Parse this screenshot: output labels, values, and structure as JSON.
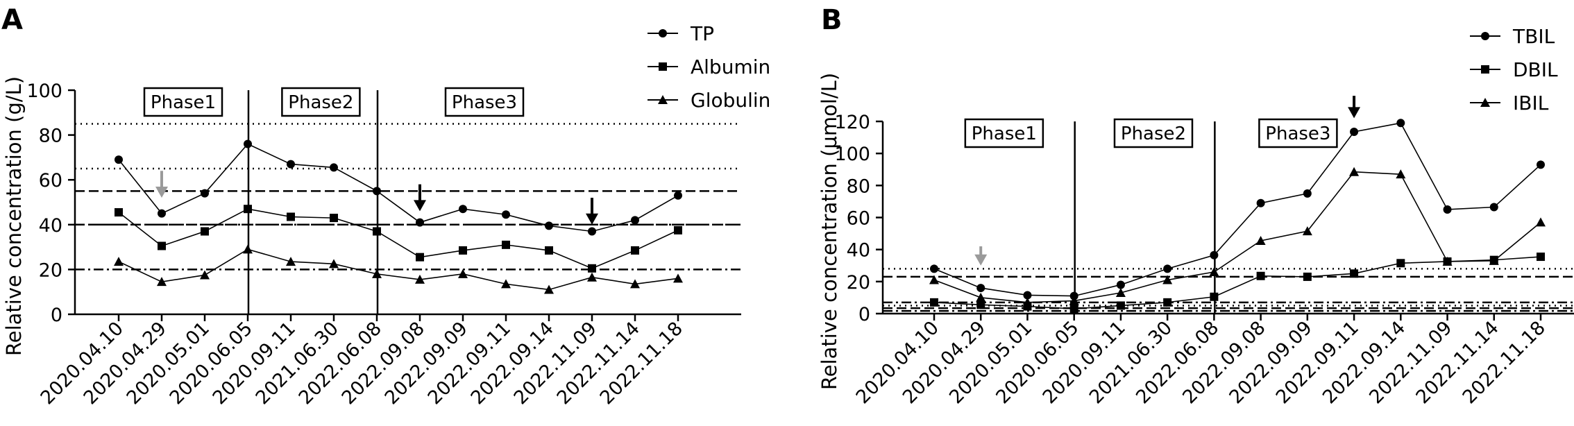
{
  "chart_data": [
    {
      "type": "line",
      "panel": "A",
      "title": "",
      "xlabel": "",
      "ylabel": "Relative concentration (g/L)",
      "ylim": [
        0,
        100
      ],
      "yticks": [
        0,
        20,
        40,
        60,
        80,
        100
      ],
      "categories": [
        "2020.04.10",
        "2020.04.29",
        "2020.05.01",
        "2020.06.05",
        "2020.09.11",
        "2021.06.30",
        "2022.06.08",
        "2022.09.08",
        "2022.09.09",
        "2022.09.11",
        "2022.09.14",
        "2022.11.09",
        "2022.11.14",
        "2022.11.18"
      ],
      "series": [
        {
          "name": "TP",
          "marker": "circle",
          "values": [
            69,
            45,
            54,
            76,
            67,
            65.5,
            55,
            41,
            47,
            44.5,
            39.5,
            37,
            42,
            53
          ]
        },
        {
          "name": "Albumin",
          "marker": "square",
          "values": [
            45.5,
            30.5,
            37,
            47,
            43.5,
            43,
            37,
            25.5,
            28.5,
            31,
            28.5,
            20.5,
            28.5,
            37.5
          ]
        },
        {
          "name": "Globulin",
          "marker": "triangle",
          "values": [
            23.5,
            14.5,
            17.5,
            29,
            23.5,
            22.5,
            18,
            15.5,
            18,
            13.5,
            11,
            16.5,
            13.5,
            16
          ]
        }
      ],
      "reference_lines": [
        {
          "value": 85,
          "style": "dotted"
        },
        {
          "value": 65,
          "style": "dotted"
        },
        {
          "value": 55,
          "style": "dashed"
        },
        {
          "value": 40,
          "style": "dashed"
        },
        {
          "value": 40,
          "style": "dashdot"
        },
        {
          "value": 20,
          "style": "dashdot"
        }
      ],
      "phase_dividers_after_index": [
        3,
        6
      ],
      "phases": [
        {
          "label": "Phase1",
          "center_index": 1.5
        },
        {
          "label": "Phase2",
          "center_index": 4.7
        },
        {
          "label": "Phase3",
          "center_index": 8.5
        }
      ],
      "arrows": [
        {
          "index": 1,
          "color": "#9a9a9a",
          "from": 64,
          "to": 52
        },
        {
          "index": 7,
          "color": "#000000",
          "from": 58,
          "to": 46
        },
        {
          "index": 11,
          "color": "#000000",
          "from": 52,
          "to": 40
        }
      ],
      "legend_position": "top-right"
    },
    {
      "type": "line",
      "panel": "B",
      "title": "",
      "xlabel": "",
      "ylabel": "Relative concentration (μmol/L)",
      "ylim": [
        0,
        120
      ],
      "yticks": [
        0,
        20,
        40,
        60,
        80,
        100,
        120
      ],
      "categories": [
        "2020.04.10",
        "2020.04.29",
        "2020.05.01",
        "2020.06.05",
        "2020.09.11",
        "2021.06.30",
        "2022.06.08",
        "2022.09.08",
        "2022.09.09",
        "2022.09.11",
        "2022.09.14",
        "2022.11.09",
        "2022.11.14",
        "2022.11.18"
      ],
      "series": [
        {
          "name": "TBIL",
          "marker": "circle",
          "values": [
            28,
            16,
            11.5,
            11,
            18,
            28,
            36.5,
            69,
            75,
            113.5,
            119,
            65,
            66.5,
            93
          ]
        },
        {
          "name": "DBIL",
          "marker": "square",
          "values": [
            7,
            5.5,
            4.5,
            3,
            5,
            7,
            10.5,
            23.5,
            23,
            25,
            31.5,
            32.5,
            33.5,
            35.5
          ]
        },
        {
          "name": "IBIL",
          "marker": "triangle",
          "values": [
            21,
            10,
            7,
            8,
            13,
            21,
            26,
            45.5,
            51.5,
            88.5,
            87,
            32.5,
            33,
            57
          ]
        }
      ],
      "reference_lines": [
        {
          "value": 28,
          "style": "dotted"
        },
        {
          "value": 23,
          "style": "dashed"
        },
        {
          "value": 7,
          "style": "dashdot"
        },
        {
          "value": 5,
          "style": "dotted"
        },
        {
          "value": 3.4,
          "style": "dashed"
        },
        {
          "value": 1.7,
          "style": "dashdot"
        }
      ],
      "phase_dividers_after_index": [
        3,
        6
      ],
      "phases": [
        {
          "label": "Phase1",
          "center_index": 1.5
        },
        {
          "label": "Phase2",
          "center_index": 4.7
        },
        {
          "label": "Phase3",
          "center_index": 7.8
        }
      ],
      "arrows": [
        {
          "index": 1,
          "color": "#9a9a9a",
          "from": 42,
          "to": 30
        },
        {
          "index": 9,
          "color": "#000000",
          "from": 136,
          "to": 122
        }
      ],
      "legend_position": "top-right"
    }
  ]
}
